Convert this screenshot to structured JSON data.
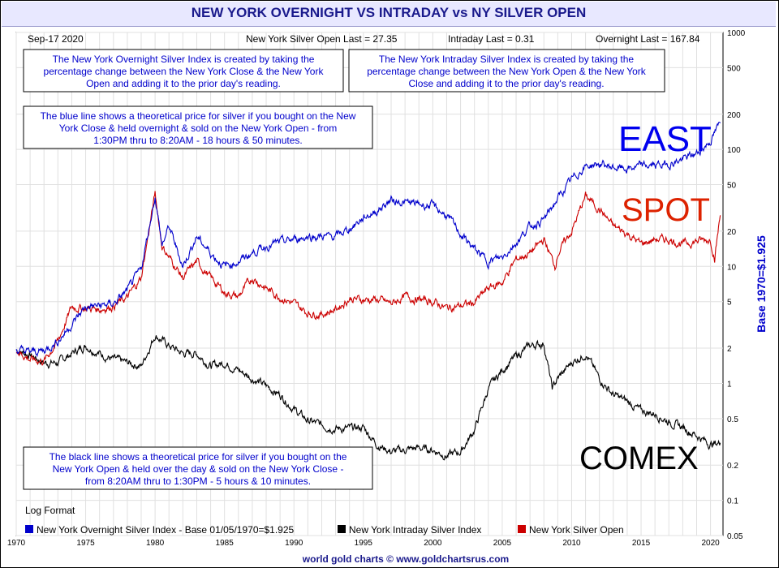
{
  "title": "NEW YORK OVERNIGHT VS INTRADAY vs NY SILVER OPEN",
  "header": {
    "date": "Sep-17  2020",
    "open_last": "New York Silver Open Last = 27.35",
    "intraday_last": "Intraday Last = 0.31",
    "overnight_last": "Overnight Last = 167.84"
  },
  "notes": {
    "overnight_def": [
      "The New York Overnight Silver Index is created by taking the",
      "percentage change between the New York Close & the New York",
      "Open and adding it to the prior day's reading."
    ],
    "intraday_def": [
      "The New York Intraday Silver Index is created by taking the",
      "percentage change between the New York Open & the New York",
      "Close and adding it to the prior day's reading."
    ],
    "blue_line": [
      "The blue line shows a theoretical price for silver if you bought on the New",
      "York Close & held overnight & sold on the New York Open - from",
      "1:30PM thru to 8:20AM - 18 hours & 50 minutes."
    ],
    "black_line": [
      "The black line shows a theoretical price for silver if you bought on the",
      "New York Open & held over the day & sold on the New York Close -",
      "from 8:20AM thru to 1:30PM - 5 hours & 10 minutes."
    ]
  },
  "big_labels": {
    "east": "EAST",
    "spot": "SPOT",
    "comex": "COMEX"
  },
  "log_format": "Log Format",
  "footer": "world gold charts © www.goldchartsrus.com",
  "colors": {
    "overnight": "#0000cc",
    "intraday": "#000000",
    "open": "#cc0000",
    "title_bg": "#e8e8ff",
    "title_text": "#1a1a8c",
    "grid": "#e0e0e0"
  },
  "chart_data": {
    "type": "line",
    "scale": "log",
    "title": "NEW YORK OVERNIGHT VS INTRADAY vs NY SILVER OPEN",
    "ylabel": "Base 1970=$1.925",
    "xlim": [
      1970,
      2020.9
    ],
    "ylim": [
      0.05,
      1000
    ],
    "x_ticks": [
      1970,
      1975,
      1980,
      1985,
      1990,
      1995,
      2000,
      2005,
      2010,
      2015,
      2020
    ],
    "y_ticks": [
      {
        "v": 1000,
        "t": "1000"
      },
      {
        "v": 500,
        "t": "500"
      },
      {
        "v": 200,
        "t": "200"
      },
      {
        "v": 100,
        "t": "100"
      },
      {
        "v": 50,
        "t": "50"
      },
      {
        "v": 20,
        "t": "20"
      },
      {
        "v": 10,
        "t": "10"
      },
      {
        "v": 5,
        "t": "5"
      },
      {
        "v": 2,
        "t": "2"
      },
      {
        "v": 1,
        "t": "1"
      },
      {
        "v": 0.5,
        "t": "0.5"
      },
      {
        "v": 0.2,
        "t": "0.2"
      },
      {
        "v": 0.1,
        "t": "0.1"
      },
      {
        "v": 0.05,
        "t": "0.05"
      }
    ],
    "series": [
      {
        "name": "New York Overnight Silver Index - Base 01/05/1970=$1.925",
        "key": "overnight",
        "points": [
          [
            1970,
            1.93
          ],
          [
            1971,
            1.85
          ],
          [
            1972,
            1.9
          ],
          [
            1973,
            2.3
          ],
          [
            1974,
            3.2
          ],
          [
            1975,
            4.5
          ],
          [
            1976,
            4.6
          ],
          [
            1977,
            4.8
          ],
          [
            1978,
            6.2
          ],
          [
            1979,
            9.5
          ],
          [
            1980,
            40
          ],
          [
            1980.5,
            15
          ],
          [
            1981,
            22
          ],
          [
            1982,
            10
          ],
          [
            1983,
            18
          ],
          [
            1984,
            13
          ],
          [
            1985,
            10
          ],
          [
            1986,
            11
          ],
          [
            1987,
            13
          ],
          [
            1988,
            15
          ],
          [
            1989,
            16
          ],
          [
            1990,
            17
          ],
          [
            1991,
            18
          ],
          [
            1992,
            18
          ],
          [
            1993,
            18
          ],
          [
            1994,
            21
          ],
          [
            1995,
            26
          ],
          [
            1996,
            30
          ],
          [
            1997,
            37
          ],
          [
            1998,
            35
          ],
          [
            1999,
            34
          ],
          [
            2000,
            33
          ],
          [
            2001,
            27
          ],
          [
            2002,
            19
          ],
          [
            2003,
            14
          ],
          [
            2004,
            11
          ],
          [
            2005,
            12
          ],
          [
            2006,
            16
          ],
          [
            2007,
            22
          ],
          [
            2008,
            25
          ],
          [
            2009,
            38
          ],
          [
            2010,
            55
          ],
          [
            2011,
            72
          ],
          [
            2012,
            75
          ],
          [
            2013,
            70
          ],
          [
            2014,
            68
          ],
          [
            2015,
            72
          ],
          [
            2016,
            73
          ],
          [
            2017,
            75
          ],
          [
            2018,
            82
          ],
          [
            2019,
            92
          ],
          [
            2020,
            118
          ],
          [
            2020.7,
            168
          ]
        ]
      },
      {
        "name": "New York Intraday Silver Index",
        "key": "intraday",
        "points": [
          [
            1970,
            1.93
          ],
          [
            1971,
            1.75
          ],
          [
            1972,
            1.5
          ],
          [
            1973,
            1.5
          ],
          [
            1974,
            1.8
          ],
          [
            1975,
            2.1
          ],
          [
            1976,
            1.8
          ],
          [
            1977,
            1.6
          ],
          [
            1978,
            1.5
          ],
          [
            1979,
            1.4
          ],
          [
            1980,
            2.6
          ],
          [
            1981,
            2.1
          ],
          [
            1982,
            1.8
          ],
          [
            1983,
            1.8
          ],
          [
            1984,
            1.4
          ],
          [
            1985,
            1.5
          ],
          [
            1986,
            1.3
          ],
          [
            1987,
            1.1
          ],
          [
            1988,
            0.95
          ],
          [
            1989,
            0.8
          ],
          [
            1990,
            0.6
          ],
          [
            1991,
            0.48
          ],
          [
            1992,
            0.44
          ],
          [
            1993,
            0.41
          ],
          [
            1994,
            0.41
          ],
          [
            1995,
            0.42
          ],
          [
            1996,
            0.3
          ],
          [
            1997,
            0.26
          ],
          [
            1998,
            0.27
          ],
          [
            1999,
            0.28
          ],
          [
            2000,
            0.27
          ],
          [
            2001,
            0.24
          ],
          [
            2002,
            0.26
          ],
          [
            2003,
            0.4
          ],
          [
            2004,
            0.9
          ],
          [
            2005,
            1.3
          ],
          [
            2006,
            1.7
          ],
          [
            2007,
            2.1
          ],
          [
            2008,
            2.2
          ],
          [
            2008.6,
            0.9
          ],
          [
            2009,
            1.1
          ],
          [
            2010,
            1.5
          ],
          [
            2011,
            1.8
          ],
          [
            2012,
            1.1
          ],
          [
            2013,
            0.8
          ],
          [
            2014,
            0.7
          ],
          [
            2015,
            0.58
          ],
          [
            2016,
            0.55
          ],
          [
            2017,
            0.47
          ],
          [
            2018,
            0.42
          ],
          [
            2019,
            0.36
          ],
          [
            2020,
            0.3
          ],
          [
            2020.7,
            0.31
          ]
        ]
      },
      {
        "name": "New York Silver Open",
        "key": "open",
        "points": [
          [
            1970,
            1.93
          ],
          [
            1971,
            1.6
          ],
          [
            1972,
            1.55
          ],
          [
            1973,
            2.3
          ],
          [
            1974,
            4.5
          ],
          [
            1975,
            4.4
          ],
          [
            1976,
            4.3
          ],
          [
            1977,
            4.6
          ],
          [
            1978,
            5.4
          ],
          [
            1979,
            8
          ],
          [
            1980,
            42
          ],
          [
            1980.5,
            15
          ],
          [
            1981,
            12
          ],
          [
            1982,
            8
          ],
          [
            1983,
            11
          ],
          [
            1984,
            8
          ],
          [
            1985,
            6
          ],
          [
            1986,
            5.5
          ],
          [
            1987,
            8
          ],
          [
            1988,
            6.5
          ],
          [
            1989,
            5.5
          ],
          [
            1990,
            4.8
          ],
          [
            1991,
            4
          ],
          [
            1992,
            3.9
          ],
          [
            1993,
            4.3
          ],
          [
            1994,
            5.3
          ],
          [
            1995,
            5.2
          ],
          [
            1996,
            5.2
          ],
          [
            1997,
            4.8
          ],
          [
            1998,
            5.5
          ],
          [
            1999,
            5.2
          ],
          [
            2000,
            5
          ],
          [
            2001,
            4.4
          ],
          [
            2002,
            4.6
          ],
          [
            2003,
            4.9
          ],
          [
            2004,
            6.5
          ],
          [
            2005,
            7.3
          ],
          [
            2006,
            11.5
          ],
          [
            2007,
            13
          ],
          [
            2008,
            17
          ],
          [
            2008.8,
            10
          ],
          [
            2009,
            13
          ],
          [
            2010,
            20
          ],
          [
            2011,
            40
          ],
          [
            2012,
            31
          ],
          [
            2013,
            22
          ],
          [
            2014,
            19
          ],
          [
            2015,
            15.5
          ],
          [
            2016,
            17
          ],
          [
            2017,
            17
          ],
          [
            2018,
            15.5
          ],
          [
            2019,
            16.5
          ],
          [
            2020,
            17
          ],
          [
            2020.3,
            12
          ],
          [
            2020.7,
            27.35
          ]
        ]
      }
    ]
  }
}
